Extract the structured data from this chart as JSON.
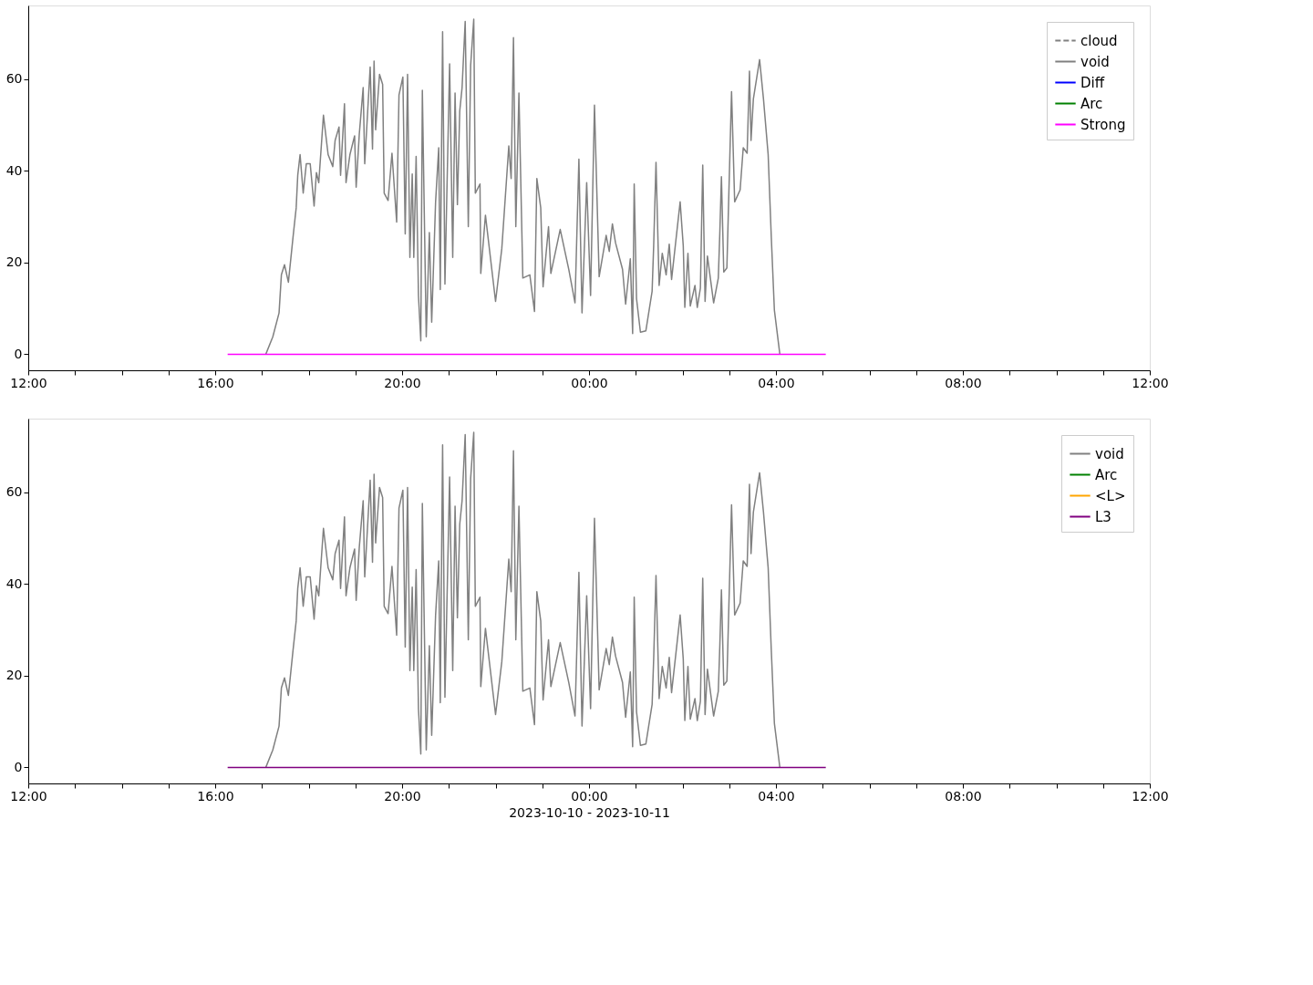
{
  "chart_data": [
    {
      "type": "line",
      "xlim": [
        "2023-10-10T12:00",
        "2023-10-11T12:00"
      ],
      "ylim": [
        -3.5,
        76
      ],
      "yticks": [
        0,
        20,
        40,
        60
      ],
      "xticks": [
        {
          "value": "2023-10-10T12:00",
          "label": "12:00"
        },
        {
          "value": "2023-10-10T13:00",
          "label": null
        },
        {
          "value": "2023-10-10T14:00",
          "label": null
        },
        {
          "value": "2023-10-10T15:00",
          "label": null
        },
        {
          "value": "2023-10-10T16:00",
          "label": "16:00"
        },
        {
          "value": "2023-10-10T17:00",
          "label": null
        },
        {
          "value": "2023-10-10T18:00",
          "label": null
        },
        {
          "value": "2023-10-10T19:00",
          "label": null
        },
        {
          "value": "2023-10-10T20:00",
          "label": "20:00"
        },
        {
          "value": "2023-10-10T21:00",
          "label": null
        },
        {
          "value": "2023-10-10T22:00",
          "label": null
        },
        {
          "value": "2023-10-10T23:00",
          "label": null
        },
        {
          "value": "2023-10-11T00:00",
          "label": "00:00"
        },
        {
          "value": "2023-10-11T01:00",
          "label": null
        },
        {
          "value": "2023-10-11T02:00",
          "label": null
        },
        {
          "value": "2023-10-11T03:00",
          "label": null
        },
        {
          "value": "2023-10-11T04:00",
          "label": "04:00"
        },
        {
          "value": "2023-10-11T05:00",
          "label": null
        },
        {
          "value": "2023-10-11T06:00",
          "label": null
        },
        {
          "value": "2023-10-11T07:00",
          "label": null
        },
        {
          "value": "2023-10-11T08:00",
          "label": "08:00"
        },
        {
          "value": "2023-10-11T09:00",
          "label": null
        },
        {
          "value": "2023-10-11T10:00",
          "label": null
        },
        {
          "value": "2023-10-11T11:00",
          "label": null
        },
        {
          "value": "2023-10-11T12:00",
          "label": "12:00"
        }
      ],
      "grid": false,
      "legend": "top right",
      "series": [
        {
          "name": "cloud",
          "color": "#808080",
          "line_style": "dashed"
        },
        {
          "name": "void",
          "color": "#808080",
          "line_style": "solid",
          "x": [
            "2023-10-10T17:05",
            "2023-10-10T17:14",
            "2023-10-10T17:22",
            "2023-10-10T17:25",
            "2023-10-10T17:29",
            "2023-10-10T17:34",
            "2023-10-10T17:40",
            "2023-10-10T17:44",
            "2023-10-10T17:46",
            "2023-10-10T17:49",
            "2023-10-10T17:53",
            "2023-10-10T17:57",
            "2023-10-10T18:02",
            "2023-10-10T18:07",
            "2023-10-10T18:10",
            "2023-10-10T18:13",
            "2023-10-10T18:19",
            "2023-10-10T18:25",
            "2023-10-10T18:31",
            "2023-10-10T18:34",
            "2023-10-10T18:39",
            "2023-10-10T18:41",
            "2023-10-10T18:46",
            "2023-10-10T18:48",
            "2023-10-10T18:53",
            "2023-10-10T18:59",
            "2023-10-10T19:01",
            "2023-10-10T19:05",
            "2023-10-10T19:10",
            "2023-10-10T19:12",
            "2023-10-10T19:19",
            "2023-10-10T19:22",
            "2023-10-10T19:24",
            "2023-10-10T19:26",
            "2023-10-10T19:31",
            "2023-10-10T19:35",
            "2023-10-10T19:37",
            "2023-10-10T19:42",
            "2023-10-10T19:47",
            "2023-10-10T19:53",
            "2023-10-10T19:56",
            "2023-10-10T20:01",
            "2023-10-10T20:04",
            "2023-10-10T20:07",
            "2023-10-10T20:10",
            "2023-10-10T20:13",
            "2023-10-10T20:15",
            "2023-10-10T20:18",
            "2023-10-10T20:21",
            "2023-10-10T20:24",
            "2023-10-10T20:26",
            "2023-10-10T20:31",
            "2023-10-10T20:35",
            "2023-10-10T20:38",
            "2023-10-10T20:43",
            "2023-10-10T20:47",
            "2023-10-10T20:49",
            "2023-10-10T20:52",
            "2023-10-10T20:55",
            "2023-10-10T21:01",
            "2023-10-10T21:05",
            "2023-10-10T21:08",
            "2023-10-10T21:11",
            "2023-10-10T21:14",
            "2023-10-10T21:17",
            "2023-10-10T21:21",
            "2023-10-10T21:25",
            "2023-10-10T21:28",
            "2023-10-10T21:32",
            "2023-10-10T21:34",
            "2023-10-10T21:40",
            "2023-10-10T21:41",
            "2023-10-10T21:47",
            "2023-10-10T22:00",
            "2023-10-10T22:08",
            "2023-10-10T22:17",
            "2023-10-10T22:20",
            "2023-10-10T22:23",
            "2023-10-10T22:26",
            "2023-10-10T22:30",
            "2023-10-10T22:35",
            "2023-10-10T22:44",
            "2023-10-10T22:50",
            "2023-10-10T22:53",
            "2023-10-10T22:58",
            "2023-10-10T23:01",
            "2023-10-10T23:08",
            "2023-10-10T23:11",
            "2023-10-10T23:23",
            "2023-10-10T23:34",
            "2023-10-10T23:42",
            "2023-10-10T23:47",
            "2023-10-10T23:51",
            "2023-10-10T23:57",
            "2023-10-11T00:02",
            "2023-10-11T00:07",
            "2023-10-11T00:13",
            "2023-10-11T00:22",
            "2023-10-11T00:26",
            "2023-10-11T00:30",
            "2023-10-11T00:34",
            "2023-10-11T00:43",
            "2023-10-11T00:47",
            "2023-10-11T00:53",
            "2023-10-11T00:56",
            "2023-10-11T00:58",
            "2023-10-11T01:01",
            "2023-10-11T01:06",
            "2023-10-11T01:13",
            "2023-10-11T01:21",
            "2023-10-11T01:23",
            "2023-10-11T01:26",
            "2023-10-11T01:30",
            "2023-10-11T01:34",
            "2023-10-11T01:39",
            "2023-10-11T01:43",
            "2023-10-11T01:46",
            "2023-10-11T01:51",
            "2023-10-11T01:57",
            "2023-10-11T02:01",
            "2023-10-11T02:03",
            "2023-10-11T02:07",
            "2023-10-11T02:10",
            "2023-10-11T02:16",
            "2023-10-11T02:19",
            "2023-10-11T02:23",
            "2023-10-11T02:26",
            "2023-10-11T02:29",
            "2023-10-11T02:32",
            "2023-10-11T02:40",
            "2023-10-11T02:46",
            "2023-10-11T02:48",
            "2023-10-11T02:50",
            "2023-10-11T02:53",
            "2023-10-11T02:57",
            "2023-10-11T03:03",
            "2023-10-11T03:07",
            "2023-10-11T03:14",
            "2023-10-11T03:18",
            "2023-10-11T03:23",
            "2023-10-11T03:26",
            "2023-10-11T03:28",
            "2023-10-11T03:31",
            "2023-10-11T03:39",
            "2023-10-11T03:44",
            "2023-10-11T03:50",
            "2023-10-11T03:54",
            "2023-10-11T03:58",
            "2023-10-11T04:05"
          ],
          "values": [
            0,
            3.8,
            9.0,
            17.3,
            19.5,
            15.7,
            25.6,
            31.9,
            39.0,
            43.5,
            35.1,
            41.5,
            41.5,
            32.3,
            39.6,
            37.4,
            52.1,
            43.5,
            40.9,
            46.6,
            49.5,
            39.0,
            54.6,
            37.4,
            43.5,
            47.6,
            36.4,
            47.9,
            58.1,
            41.5,
            62.6,
            44.7,
            63.9,
            48.9,
            61.0,
            58.8,
            35.1,
            33.5,
            43.8,
            28.8,
            56.5,
            60.4,
            26.2,
            61.0,
            21.1,
            39.3,
            21.1,
            43.1,
            12.8,
            2.9,
            57.5,
            3.8,
            26.5,
            7.0,
            33.2,
            45.0,
            14.1,
            70.3,
            15.3,
            63.3,
            21.1,
            56.9,
            32.6,
            53.0,
            58.1,
            72.5,
            27.8,
            62.9,
            73.0,
            35.1,
            37.1,
            17.6,
            30.3,
            11.5,
            23.0,
            45.4,
            38.3,
            69.0,
            27.8,
            56.9,
            16.6,
            17.3,
            9.3,
            38.3,
            31.9,
            14.7,
            27.8,
            17.6,
            27.2,
            18.5,
            11.2,
            42.5,
            9.0,
            37.4,
            12.8,
            54.3,
            16.9,
            25.9,
            22.4,
            28.4,
            24.3,
            18.5,
            10.9,
            20.8,
            4.5,
            37.1,
            12.1,
            4.8,
            5.1,
            13.7,
            23.6,
            41.8,
            15.0,
            22.0,
            17.3,
            24.0,
            16.3,
            24.0,
            33.2,
            23.6,
            10.2,
            22.0,
            10.5,
            15.0,
            10.2,
            14.4,
            41.2,
            11.5,
            21.4,
            11.2,
            16.6,
            26.8,
            38.7,
            17.9,
            18.8,
            57.2,
            33.2,
            35.8,
            45.0,
            43.8,
            61.7,
            46.6,
            55.6,
            64.2,
            55.6,
            43.5,
            25.6,
            9.6,
            0
          ]
        },
        {
          "name": "Diff",
          "color": "#0000ff",
          "line_style": "solid"
        },
        {
          "name": "Arc",
          "color": "#008000",
          "line_style": "solid"
        },
        {
          "name": "Strong",
          "color": "#ff00ff",
          "line_style": "solid",
          "x": [
            "2023-10-10T16:16",
            "2023-10-11T05:04"
          ],
          "values": [
            0,
            0
          ]
        }
      ]
    },
    {
      "type": "line",
      "xlabel": "2023-10-10 - 2023-10-11",
      "xlim": [
        "2023-10-10T12:00",
        "2023-10-11T12:00"
      ],
      "ylim": [
        -3.5,
        76
      ],
      "yticks": [
        0,
        20,
        40,
        60
      ],
      "xticks": [
        {
          "value": "2023-10-10T12:00",
          "label": "12:00"
        },
        {
          "value": "2023-10-10T13:00",
          "label": null
        },
        {
          "value": "2023-10-10T14:00",
          "label": null
        },
        {
          "value": "2023-10-10T15:00",
          "label": null
        },
        {
          "value": "2023-10-10T16:00",
          "label": "16:00"
        },
        {
          "value": "2023-10-10T17:00",
          "label": null
        },
        {
          "value": "2023-10-10T18:00",
          "label": null
        },
        {
          "value": "2023-10-10T19:00",
          "label": null
        },
        {
          "value": "2023-10-10T20:00",
          "label": "20:00"
        },
        {
          "value": "2023-10-10T21:00",
          "label": null
        },
        {
          "value": "2023-10-10T22:00",
          "label": null
        },
        {
          "value": "2023-10-10T23:00",
          "label": null
        },
        {
          "value": "2023-10-11T00:00",
          "label": "00:00"
        },
        {
          "value": "2023-10-11T01:00",
          "label": null
        },
        {
          "value": "2023-10-11T02:00",
          "label": null
        },
        {
          "value": "2023-10-11T03:00",
          "label": null
        },
        {
          "value": "2023-10-11T04:00",
          "label": "04:00"
        },
        {
          "value": "2023-10-11T05:00",
          "label": null
        },
        {
          "value": "2023-10-11T06:00",
          "label": null
        },
        {
          "value": "2023-10-11T07:00",
          "label": null
        },
        {
          "value": "2023-10-11T08:00",
          "label": "08:00"
        },
        {
          "value": "2023-10-11T09:00",
          "label": null
        },
        {
          "value": "2023-10-11T10:00",
          "label": null
        },
        {
          "value": "2023-10-11T11:00",
          "label": null
        },
        {
          "value": "2023-10-11T12:00",
          "label": "12:00"
        }
      ],
      "grid": false,
      "legend": "top right",
      "series": [
        {
          "name": "void",
          "color": "#808080",
          "line_style": "solid",
          "x": [
            "2023-10-10T17:05",
            "2023-10-10T17:14",
            "2023-10-10T17:22",
            "2023-10-10T17:25",
            "2023-10-10T17:29",
            "2023-10-10T17:34",
            "2023-10-10T17:40",
            "2023-10-10T17:44",
            "2023-10-10T17:46",
            "2023-10-10T17:49",
            "2023-10-10T17:53",
            "2023-10-10T17:57",
            "2023-10-10T18:02",
            "2023-10-10T18:07",
            "2023-10-10T18:10",
            "2023-10-10T18:13",
            "2023-10-10T18:19",
            "2023-10-10T18:25",
            "2023-10-10T18:31",
            "2023-10-10T18:34",
            "2023-10-10T18:39",
            "2023-10-10T18:41",
            "2023-10-10T18:46",
            "2023-10-10T18:48",
            "2023-10-10T18:53",
            "2023-10-10T18:59",
            "2023-10-10T19:01",
            "2023-10-10T19:05",
            "2023-10-10T19:10",
            "2023-10-10T19:12",
            "2023-10-10T19:19",
            "2023-10-10T19:22",
            "2023-10-10T19:24",
            "2023-10-10T19:26",
            "2023-10-10T19:31",
            "2023-10-10T19:35",
            "2023-10-10T19:37",
            "2023-10-10T19:42",
            "2023-10-10T19:47",
            "2023-10-10T19:53",
            "2023-10-10T19:56",
            "2023-10-10T20:01",
            "2023-10-10T20:04",
            "2023-10-10T20:07",
            "2023-10-10T20:10",
            "2023-10-10T20:13",
            "2023-10-10T20:15",
            "2023-10-10T20:18",
            "2023-10-10T20:21",
            "2023-10-10T20:24",
            "2023-10-10T20:26",
            "2023-10-10T20:31",
            "2023-10-10T20:35",
            "2023-10-10T20:38",
            "2023-10-10T20:43",
            "2023-10-10T20:47",
            "2023-10-10T20:49",
            "2023-10-10T20:52",
            "2023-10-10T20:55",
            "2023-10-10T21:01",
            "2023-10-10T21:05",
            "2023-10-10T21:08",
            "2023-10-10T21:11",
            "2023-10-10T21:14",
            "2023-10-10T21:17",
            "2023-10-10T21:21",
            "2023-10-10T21:25",
            "2023-10-10T21:28",
            "2023-10-10T21:32",
            "2023-10-10T21:34",
            "2023-10-10T21:40",
            "2023-10-10T21:41",
            "2023-10-10T21:47",
            "2023-10-10T22:00",
            "2023-10-10T22:08",
            "2023-10-10T22:17",
            "2023-10-10T22:20",
            "2023-10-10T22:23",
            "2023-10-10T22:26",
            "2023-10-10T22:30",
            "2023-10-10T22:35",
            "2023-10-10T22:44",
            "2023-10-10T22:50",
            "2023-10-10T22:53",
            "2023-10-10T22:58",
            "2023-10-10T23:01",
            "2023-10-10T23:08",
            "2023-10-10T23:11",
            "2023-10-10T23:23",
            "2023-10-10T23:34",
            "2023-10-10T23:42",
            "2023-10-10T23:47",
            "2023-10-10T23:51",
            "2023-10-10T23:57",
            "2023-10-11T00:02",
            "2023-10-11T00:07",
            "2023-10-11T00:13",
            "2023-10-11T00:22",
            "2023-10-11T00:26",
            "2023-10-11T00:30",
            "2023-10-11T00:34",
            "2023-10-11T00:43",
            "2023-10-11T00:47",
            "2023-10-11T00:53",
            "2023-10-11T00:56",
            "2023-10-11T00:58",
            "2023-10-11T01:01",
            "2023-10-11T01:06",
            "2023-10-11T01:13",
            "2023-10-11T01:21",
            "2023-10-11T01:23",
            "2023-10-11T01:26",
            "2023-10-11T01:30",
            "2023-10-11T01:34",
            "2023-10-11T01:39",
            "2023-10-11T01:43",
            "2023-10-11T01:46",
            "2023-10-11T01:51",
            "2023-10-11T01:57",
            "2023-10-11T02:01",
            "2023-10-11T02:03",
            "2023-10-11T02:07",
            "2023-10-11T02:10",
            "2023-10-11T02:16",
            "2023-10-11T02:19",
            "2023-10-11T02:23",
            "2023-10-11T02:26",
            "2023-10-11T02:29",
            "2023-10-11T02:32",
            "2023-10-11T02:40",
            "2023-10-11T02:46",
            "2023-10-11T02:48",
            "2023-10-11T02:50",
            "2023-10-11T02:53",
            "2023-10-11T02:57",
            "2023-10-11T03:03",
            "2023-10-11T03:07",
            "2023-10-11T03:14",
            "2023-10-11T03:18",
            "2023-10-11T03:23",
            "2023-10-11T03:26",
            "2023-10-11T03:28",
            "2023-10-11T03:31",
            "2023-10-11T03:39",
            "2023-10-11T03:44",
            "2023-10-11T03:50",
            "2023-10-11T03:54",
            "2023-10-11T03:58",
            "2023-10-11T04:05"
          ],
          "values": [
            0,
            3.8,
            9.0,
            17.3,
            19.5,
            15.7,
            25.6,
            31.9,
            39.0,
            43.5,
            35.1,
            41.5,
            41.5,
            32.3,
            39.6,
            37.4,
            52.1,
            43.5,
            40.9,
            46.6,
            49.5,
            39.0,
            54.6,
            37.4,
            43.5,
            47.6,
            36.4,
            47.9,
            58.1,
            41.5,
            62.6,
            44.7,
            63.9,
            48.9,
            61.0,
            58.8,
            35.1,
            33.5,
            43.8,
            28.8,
            56.5,
            60.4,
            26.2,
            61.0,
            21.1,
            39.3,
            21.1,
            43.1,
            12.8,
            2.9,
            57.5,
            3.8,
            26.5,
            7.0,
            33.2,
            45.0,
            14.1,
            70.3,
            15.3,
            63.3,
            21.1,
            56.9,
            32.6,
            53.0,
            58.1,
            72.5,
            27.8,
            62.9,
            73.0,
            35.1,
            37.1,
            17.6,
            30.3,
            11.5,
            23.0,
            45.4,
            38.3,
            69.0,
            27.8,
            56.9,
            16.6,
            17.3,
            9.3,
            38.3,
            31.9,
            14.7,
            27.8,
            17.6,
            27.2,
            18.5,
            11.2,
            42.5,
            9.0,
            37.4,
            12.8,
            54.3,
            16.9,
            25.9,
            22.4,
            28.4,
            24.3,
            18.5,
            10.9,
            20.8,
            4.5,
            37.1,
            12.1,
            4.8,
            5.1,
            13.7,
            23.6,
            41.8,
            15.0,
            22.0,
            17.3,
            24.0,
            16.3,
            24.0,
            33.2,
            23.6,
            10.2,
            22.0,
            10.5,
            15.0,
            10.2,
            14.4,
            41.2,
            11.5,
            21.4,
            11.2,
            16.6,
            26.8,
            38.7,
            17.9,
            18.8,
            57.2,
            33.2,
            35.8,
            45.0,
            43.8,
            61.7,
            46.6,
            55.6,
            64.2,
            55.6,
            43.5,
            25.6,
            9.6,
            0
          ]
        },
        {
          "name": "Arc",
          "color": "#008000",
          "line_style": "solid"
        },
        {
          "name": "<L>",
          "color": "#ffa500",
          "line_style": "solid"
        },
        {
          "name": "L3",
          "color": "#800080",
          "line_style": "solid",
          "x": [
            "2023-10-10T16:16",
            "2023-10-11T05:04"
          ],
          "values": [
            0,
            0
          ]
        }
      ]
    }
  ]
}
